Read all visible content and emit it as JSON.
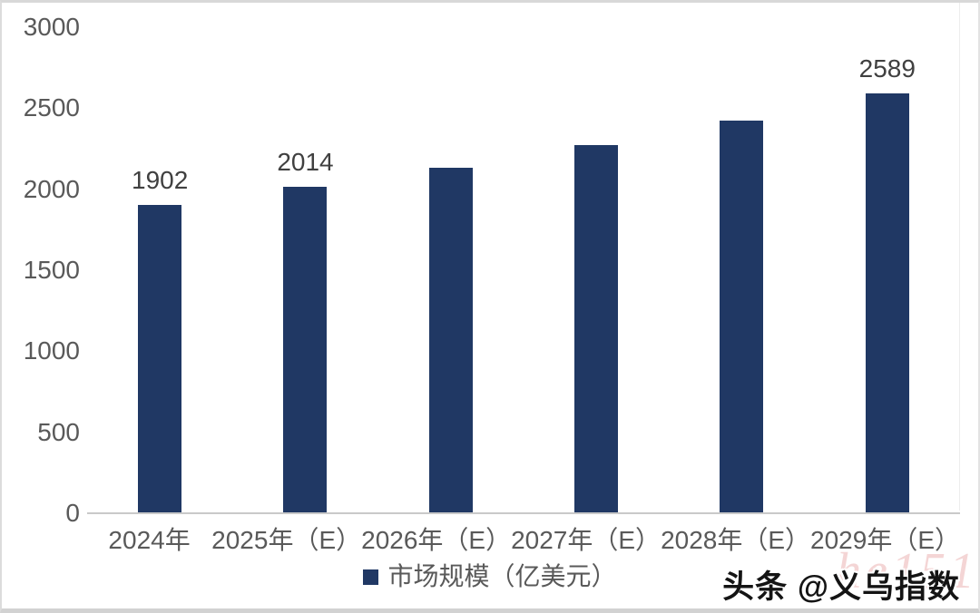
{
  "chart_data": {
    "type": "bar",
    "categories": [
      "2024年",
      "2025年（E）",
      "2026年（E）",
      "2027年（E）",
      "2028年（E）",
      "2029年（E）"
    ],
    "values": [
      1902,
      2014,
      2134,
      2272,
      2424,
      2589
    ],
    "data_labels": [
      "1902",
      "2014",
      "",
      "",
      "",
      "2589"
    ],
    "yticks": [
      3000,
      2500,
      2000,
      1500,
      1000,
      500,
      0
    ],
    "ylim": [
      0,
      3000
    ],
    "grid": false,
    "legend": "市场规模（亿美元）",
    "legend_position": "bottom",
    "bar_color": "#203864",
    "tick_color": "#595959",
    "data_label_color": "#404040"
  },
  "watermark": {
    "text": "头条 @义乌指数",
    "faint_text": "he151"
  }
}
